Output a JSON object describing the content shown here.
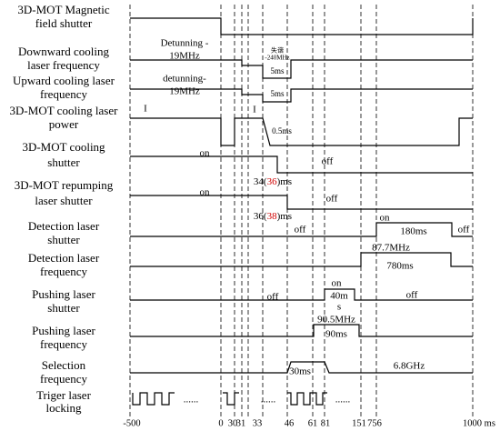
{
  "rows": [
    [
      "3D-MOT Magnetic",
      "field shutter"
    ],
    [
      "Downward cooling",
      "laser frequency"
    ],
    [
      "Upward cooling laser",
      "frequency"
    ],
    [
      "3D-MOT cooling laser",
      "power"
    ],
    [
      "3D-MOT cooling",
      "shutter"
    ],
    [
      "3D-MOT repumping",
      "laser shutter"
    ],
    [
      "Detection laser",
      "shutter"
    ],
    [
      "Detection laser",
      "frequency"
    ],
    [
      "Pushing laser",
      "shutter"
    ],
    [
      "Pushing laser",
      "frequency"
    ],
    [
      "Selection",
      "frequency"
    ],
    [
      "Triger laser",
      "locking"
    ]
  ],
  "notes": [
    "Detunning -",
    "19MHz",
    "失谐",
    "-240MHz",
    "5ms",
    "detunning-",
    "19MHz",
    "5ms",
    "I",
    "I",
    "0.5ms",
    "on",
    "off",
    "34(",
    "36",
    ")ms",
    "on",
    "off",
    "36(",
    "38",
    ")ms",
    "off",
    "on",
    "180ms",
    "off",
    "87.7MHz",
    "780ms",
    "off",
    "on",
    "40m",
    "s",
    "off",
    "90.5MHz",
    "90ms",
    "30ms",
    "6.8GHz",
    "......",
    "......",
    "......"
  ],
  "time_ticks": [
    "-500",
    "0",
    "30",
    "31",
    "33",
    "46",
    "61",
    "81",
    "151",
    "756",
    "1000 ms"
  ]
}
